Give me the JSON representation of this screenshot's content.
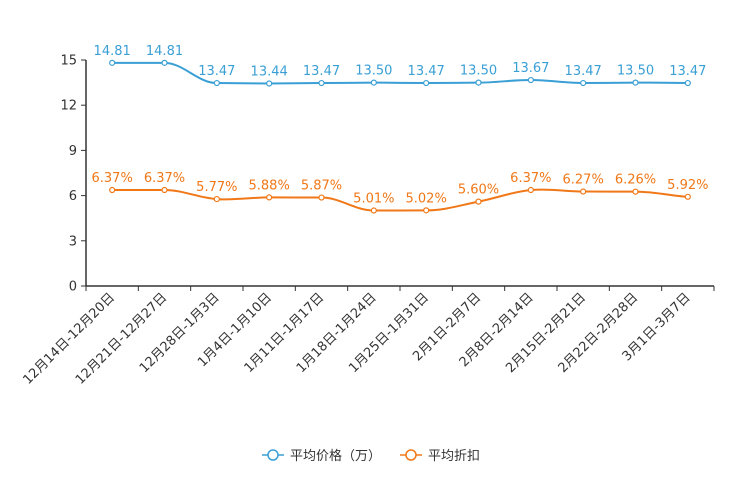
{
  "chart_data": {
    "type": "line",
    "categories": [
      "12月14日-12月20日",
      "12月21日-12月27日",
      "12月28日-1月3日",
      "1月4日-1月10日",
      "1月11日-1月17日",
      "1月18日-1月24日",
      "1月25日-1月31日",
      "2月1日-2月7日",
      "2月8日-2月14日",
      "2月15日-2月21日",
      "2月22日-2月28日",
      "3月1日-3月7日"
    ],
    "series": [
      {
        "name": "平均价格（万）",
        "color": "#3a9fd5",
        "values": [
          14.81,
          14.81,
          13.47,
          13.44,
          13.47,
          13.5,
          13.47,
          13.5,
          13.67,
          13.47,
          13.5,
          13.47
        ],
        "labels": [
          "14.81",
          "14.81",
          "13.47",
          "13.44",
          "13.47",
          "13.50",
          "13.47",
          "13.50",
          "13.67",
          "13.47",
          "13.50",
          "13.47"
        ]
      },
      {
        "name": "平均折扣",
        "color": "#f07818",
        "values": [
          6.37,
          6.37,
          5.77,
          5.88,
          5.87,
          5.01,
          5.02,
          5.6,
          6.37,
          6.27,
          6.26,
          5.92
        ],
        "labels": [
          "6.37%",
          "6.37%",
          "5.77%",
          "5.88%",
          "5.87%",
          "5.01%",
          "5.02%",
          "5.60%",
          "6.37%",
          "6.27%",
          "6.26%",
          "5.92%"
        ]
      }
    ],
    "yticks": [
      "0",
      "3",
      "6",
      "9",
      "12",
      "15"
    ],
    "ylim": [
      0,
      15
    ],
    "title": "",
    "xlabel": "",
    "ylabel": "",
    "legend_position": "bottom-center",
    "grid": false
  }
}
